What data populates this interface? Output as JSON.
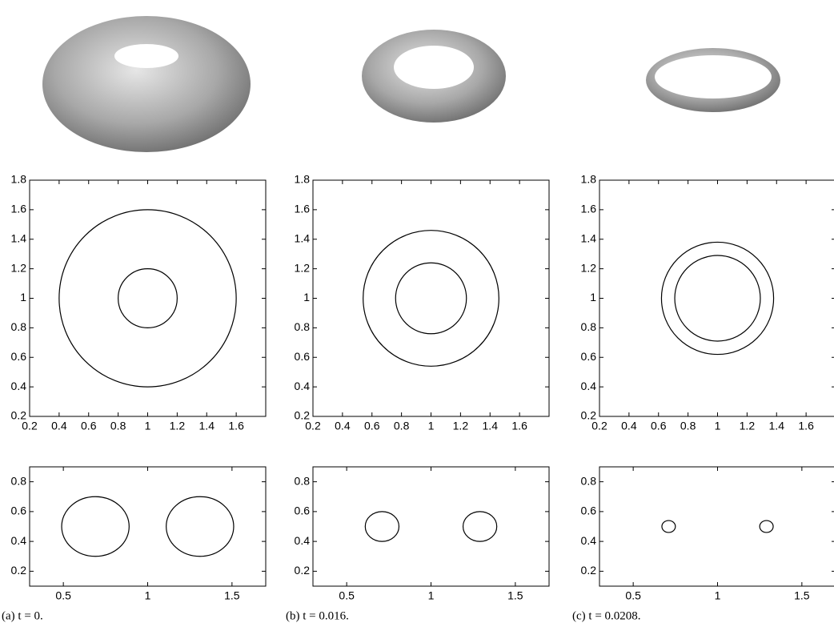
{
  "chart_data": [
    {
      "type": "contour",
      "xlim": [
        0.2,
        1.8
      ],
      "ylim": [
        0.2,
        1.8
      ],
      "xticks": [
        0.2,
        0.4,
        0.6,
        0.8,
        1,
        1.2,
        1.4,
        1.6
      ],
      "yticks": [
        0.2,
        0.4,
        0.6,
        0.8,
        1,
        1.2,
        1.4,
        1.6,
        1.8
      ],
      "circles": [
        {
          "x": 1,
          "y": 1,
          "r": 0.6
        },
        {
          "x": 1,
          "y": 1,
          "r": 0.2
        }
      ]
    },
    {
      "type": "contour",
      "xlim": [
        0.2,
        1.8
      ],
      "ylim": [
        0.2,
        1.8
      ],
      "xticks": [
        0.2,
        0.4,
        0.6,
        0.8,
        1,
        1.2,
        1.4,
        1.6
      ],
      "yticks": [
        0.2,
        0.4,
        0.6,
        0.8,
        1,
        1.2,
        1.4,
        1.6,
        1.8
      ],
      "circles": [
        {
          "x": 1,
          "y": 1,
          "r": 0.46
        },
        {
          "x": 1,
          "y": 1,
          "r": 0.24
        }
      ]
    },
    {
      "type": "contour",
      "xlim": [
        0.2,
        1.8
      ],
      "ylim": [
        0.2,
        1.8
      ],
      "xticks": [
        0.2,
        0.4,
        0.6,
        0.8,
        1,
        1.2,
        1.4,
        1.6
      ],
      "yticks": [
        0.2,
        0.4,
        0.6,
        0.8,
        1,
        1.2,
        1.4,
        1.6,
        1.8
      ],
      "circles": [
        {
          "x": 1,
          "y": 1,
          "r": 0.38
        },
        {
          "x": 1,
          "y": 1,
          "r": 0.29
        }
      ]
    },
    {
      "type": "contour",
      "xlim": [
        0.3,
        1.7
      ],
      "ylim": [
        0.1,
        0.9
      ],
      "xticks": [
        0.5,
        1,
        1.5
      ],
      "yticks": [
        0.2,
        0.4,
        0.6,
        0.8
      ],
      "circles": [
        {
          "x": 0.69,
          "y": 0.5,
          "r": 0.2
        },
        {
          "x": 1.31,
          "y": 0.5,
          "r": 0.2
        }
      ]
    },
    {
      "type": "contour",
      "xlim": [
        0.3,
        1.7
      ],
      "ylim": [
        0.1,
        0.9
      ],
      "xticks": [
        0.5,
        1,
        1.5
      ],
      "yticks": [
        0.2,
        0.4,
        0.6,
        0.8
      ],
      "circles": [
        {
          "x": 0.71,
          "y": 0.5,
          "r": 0.1
        },
        {
          "x": 1.29,
          "y": 0.5,
          "r": 0.1
        }
      ]
    },
    {
      "type": "contour",
      "xlim": [
        0.3,
        1.7
      ],
      "ylim": [
        0.1,
        0.9
      ],
      "xticks": [
        0.5,
        1,
        1.5
      ],
      "yticks": [
        0.2,
        0.4,
        0.6,
        0.8
      ],
      "circles": [
        {
          "x": 0.71,
          "y": 0.5,
          "r": 0.04
        },
        {
          "x": 1.29,
          "y": 0.5,
          "r": 0.04
        }
      ]
    }
  ],
  "captions": [
    "(a) t = 0.",
    "(b) t = 0.016.",
    "(c) t = 0.0208."
  ]
}
